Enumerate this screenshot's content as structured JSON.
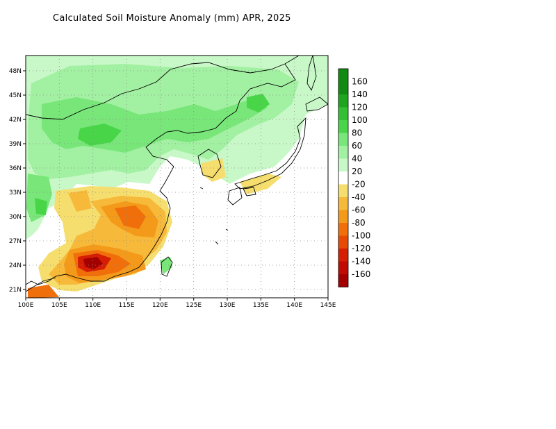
{
  "title": "Calculated Soil Moisture Anomaly (mm) APR, 2025",
  "map": {
    "lon_range": [
      100,
      145
    ],
    "lat_range": [
      20,
      49
    ],
    "x_ticks": [
      "100E",
      "105E",
      "110E",
      "115E",
      "120E",
      "125E",
      "130E",
      "135E",
      "140E",
      "145E"
    ],
    "y_ticks": [
      "21N",
      "24N",
      "27N",
      "30N",
      "33N",
      "36N",
      "39N",
      "42N",
      "45N",
      "48N"
    ],
    "grid": "dotted"
  },
  "legend": {
    "labels": [
      "160",
      "140",
      "120",
      "100",
      "80",
      "60",
      "40",
      "20",
      "-20",
      "-40",
      "-60",
      "-80",
      "-100",
      "-120",
      "-140",
      "-160"
    ],
    "colors": [
      "#108a10",
      "#1ea51e",
      "#32c032",
      "#48d548",
      "#78e678",
      "#a2f0a2",
      "#c8f8c8",
      "#ffffff",
      "#f5de6e",
      "#f7b93a",
      "#f49a1a",
      "#f16f0a",
      "#e84a06",
      "#d61e04",
      "#c20a04",
      "#a50000"
    ]
  }
}
